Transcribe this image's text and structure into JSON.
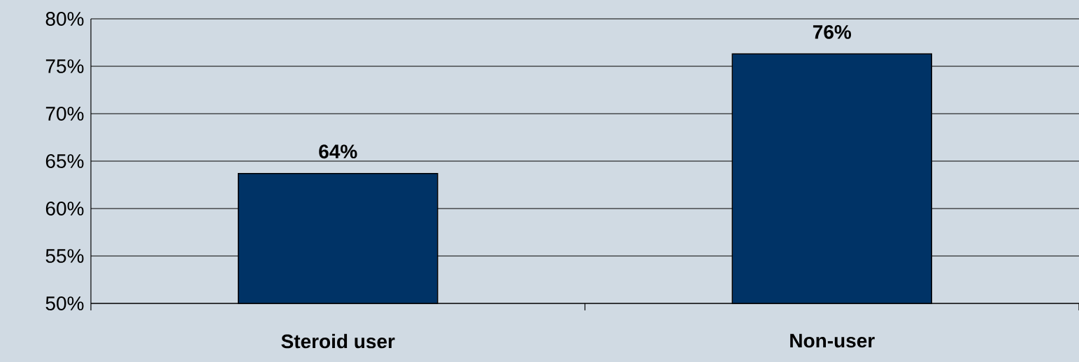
{
  "chart_data": {
    "type": "bar",
    "categories": [
      "Steroid user",
      "Non-user"
    ],
    "values": [
      63.7,
      76.3
    ],
    "value_labels": [
      "64%",
      "76%"
    ],
    "color": "#003366",
    "ylim": [
      50,
      80
    ],
    "yticks": [
      {
        "value": 50,
        "label": "50%"
      },
      {
        "value": 55,
        "label": "55%"
      },
      {
        "value": 60,
        "label": "60%"
      },
      {
        "value": 65,
        "label": "65%"
      },
      {
        "value": 70,
        "label": "70%"
      },
      {
        "value": 75,
        "label": "75%"
      },
      {
        "value": 80,
        "label": "80%"
      }
    ],
    "grid": "y"
  }
}
